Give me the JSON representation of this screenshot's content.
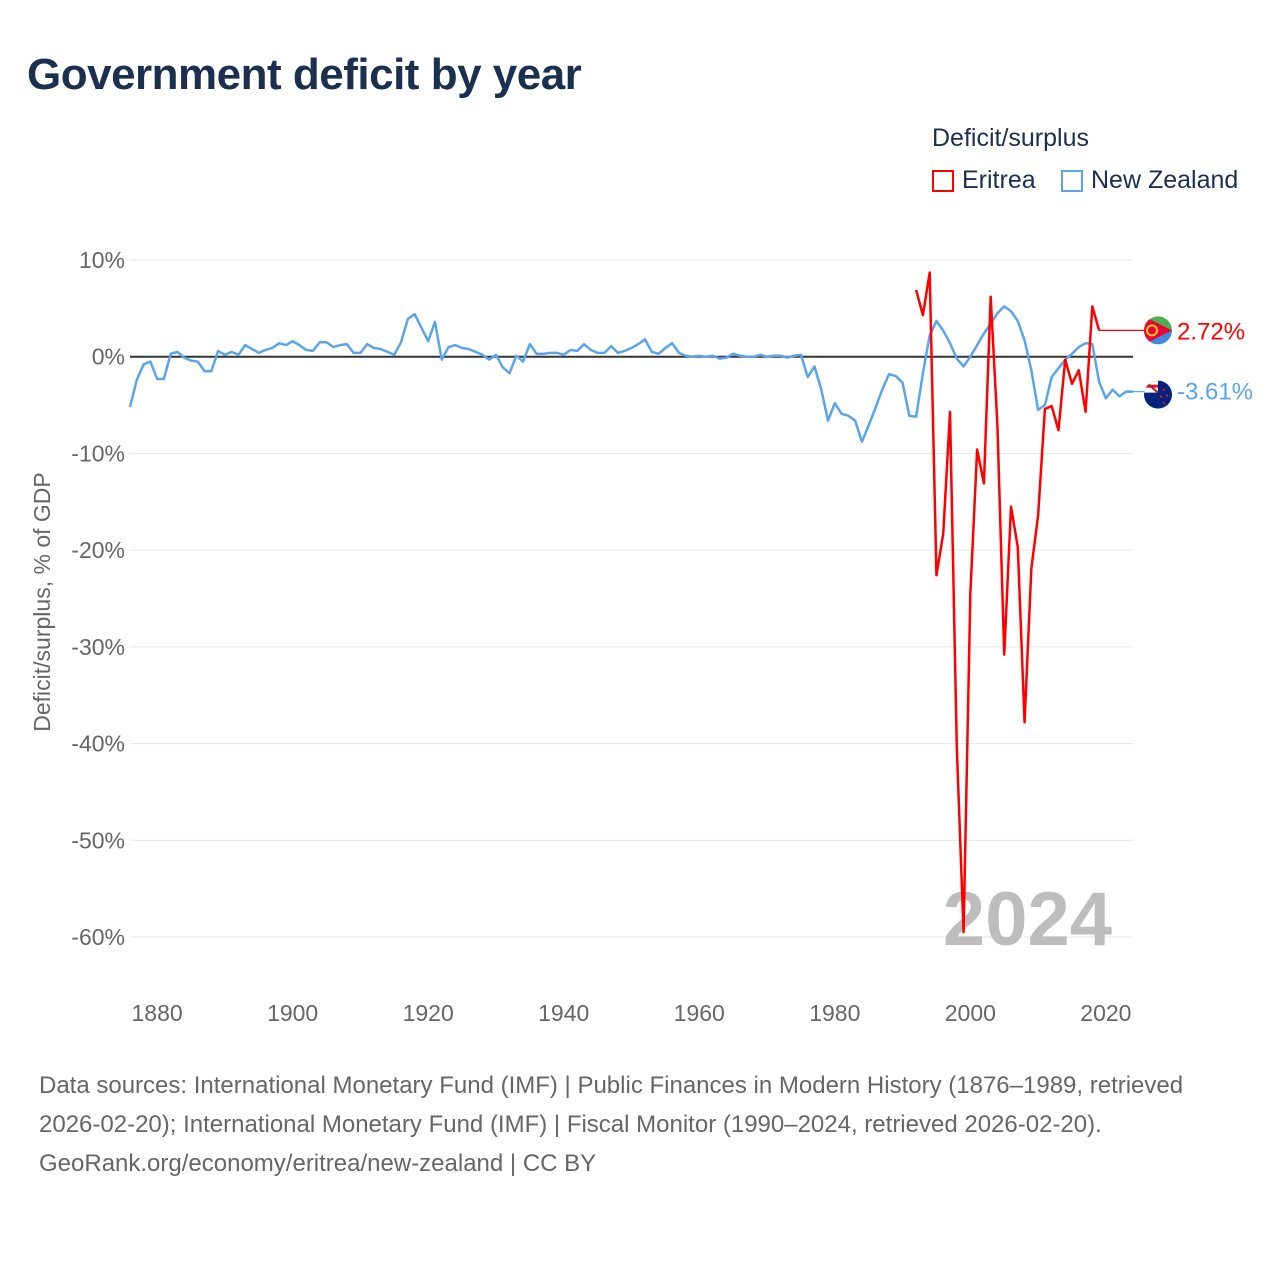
{
  "chart_data": {
    "type": "line",
    "title": "Government deficit by year",
    "ylabel": "Deficit/surplus, % of GDP",
    "xlabel": "",
    "xlim": [
      1876,
      2024
    ],
    "ylim": [
      -60,
      10
    ],
    "grid": true,
    "legend": {
      "title": "Deficit/surplus",
      "placement": "top-right"
    },
    "x_ticks": [
      1880,
      1900,
      1920,
      1940,
      1960,
      1980,
      2000,
      2020
    ],
    "x_tick_labels": [
      "1880",
      "1900",
      "1920",
      "1940",
      "1960",
      "1980",
      "2000",
      "2020"
    ],
    "y_ticks": [
      10,
      0,
      -10,
      -20,
      -30,
      -40,
      -50,
      -60
    ],
    "y_tick_labels": [
      "10%",
      "0%",
      "-10%",
      "-20%",
      "-30%",
      "-40%",
      "-50%",
      "-60%"
    ],
    "year_watermark": "2024",
    "series": [
      {
        "name": "Eritrea",
        "color": "#ff0000",
        "end_label": "2.72%",
        "flag": "eritrea-flag",
        "x": [
          1992,
          1993,
          1994,
          1995,
          1996,
          1997,
          1998,
          1999,
          2000,
          2001,
          2002,
          2003,
          2004,
          2005,
          2006,
          2007,
          2008,
          2009,
          2010,
          2011,
          2012,
          2013,
          2014,
          2015,
          2016,
          2017,
          2018,
          2019
        ],
        "values": [
          6.9,
          4.3,
          8.7,
          -22.6,
          -18.3,
          -5.7,
          -40.4,
          -59.5,
          -24.5,
          -9.6,
          -13.1,
          6.2,
          -7.2,
          -30.8,
          -15.5,
          -19.7,
          -37.8,
          -21.9,
          -16.4,
          -5.4,
          -5.1,
          -7.6,
          -0.3,
          -2.8,
          -1.4,
          -5.7,
          5.2,
          2.72
        ]
      },
      {
        "name": "New Zealand",
        "color": "#5aa5ea",
        "end_label": "-3.61%",
        "flag": "new-zealand-flag",
        "x": [
          1876,
          1877,
          1878,
          1879,
          1880,
          1881,
          1882,
          1883,
          1884,
          1885,
          1886,
          1887,
          1888,
          1889,
          1890,
          1891,
          1892,
          1893,
          1894,
          1895,
          1896,
          1897,
          1898,
          1899,
          1900,
          1901,
          1902,
          1903,
          1904,
          1905,
          1906,
          1907,
          1908,
          1909,
          1910,
          1911,
          1912,
          1913,
          1914,
          1915,
          1916,
          1917,
          1918,
          1919,
          1920,
          1921,
          1922,
          1923,
          1924,
          1925,
          1926,
          1927,
          1928,
          1929,
          1930,
          1931,
          1932,
          1933,
          1934,
          1935,
          1936,
          1937,
          1938,
          1939,
          1940,
          1941,
          1942,
          1943,
          1944,
          1945,
          1946,
          1947,
          1948,
          1949,
          1950,
          1951,
          1952,
          1953,
          1954,
          1955,
          1956,
          1957,
          1958,
          1959,
          1960,
          1961,
          1962,
          1963,
          1964,
          1965,
          1966,
          1967,
          1968,
          1969,
          1970,
          1971,
          1972,
          1973,
          1974,
          1975,
          1976,
          1977,
          1978,
          1979,
          1980,
          1981,
          1982,
          1983,
          1984,
          1985,
          1986,
          1987,
          1988,
          1989,
          1990,
          1991,
          1992,
          1993,
          1994,
          1995,
          1996,
          1997,
          1998,
          1999,
          2000,
          2001,
          2002,
          2003,
          2004,
          2005,
          2006,
          2007,
          2008,
          2009,
          2010,
          2011,
          2012,
          2013,
          2014,
          2015,
          2016,
          2017,
          2018,
          2019,
          2020,
          2021,
          2022,
          2023,
          2024
        ],
        "values": [
          -5.2,
          -2.4,
          -0.8,
          -0.5,
          -2.3,
          -2.3,
          0.3,
          0.5,
          -0.1,
          -0.4,
          -0.5,
          -1.5,
          -1.5,
          0.6,
          0.2,
          0.5,
          0.2,
          1.2,
          0.8,
          0.4,
          0.7,
          0.9,
          1.4,
          1.2,
          1.6,
          1.2,
          0.7,
          0.6,
          1.5,
          1.5,
          1.0,
          1.2,
          1.3,
          0.4,
          0.4,
          1.3,
          0.9,
          0.8,
          0.5,
          0.2,
          1.5,
          3.9,
          4.4,
          3.0,
          1.6,
          3.6,
          -0.3,
          1.0,
          1.2,
          0.9,
          0.8,
          0.5,
          0.2,
          -0.3,
          0.2,
          -1.1,
          -1.7,
          0.1,
          -0.5,
          1.3,
          0.3,
          0.3,
          0.4,
          0.4,
          0.2,
          0.7,
          0.6,
          1.3,
          0.7,
          0.4,
          0.4,
          1.1,
          0.4,
          0.6,
          0.9,
          1.3,
          1.8,
          0.5,
          0.3,
          0.9,
          1.4,
          0.4,
          0.1,
          0.0,
          0.1,
          0.0,
          0.1,
          -0.2,
          -0.1,
          0.3,
          0.1,
          0.0,
          0.0,
          0.2,
          0.0,
          0.1,
          0.1,
          -0.1,
          0.1,
          0.2,
          -2.1,
          -1.0,
          -3.4,
          -6.6,
          -4.8,
          -5.9,
          -6.1,
          -6.6,
          -8.8,
          -7.1,
          -5.3,
          -3.4,
          -1.8,
          -2.0,
          -2.7,
          -6.1,
          -6.2,
          -1.7,
          2.2,
          3.7,
          2.7,
          1.4,
          -0.2,
          -1.0,
          0.0,
          1.2,
          2.4,
          3.4,
          4.5,
          5.2,
          4.7,
          3.7,
          1.7,
          -1.4,
          -5.5,
          -5.0,
          -2.1,
          -1.2,
          -0.3,
          0.3,
          1.0,
          1.4,
          1.3,
          -2.6,
          -4.3,
          -3.4,
          -4.1,
          -3.6,
          -3.61
        ]
      }
    ]
  },
  "footer": {
    "sources": "Data sources: International Monetary Fund (IMF) | Public Finances in Modern History (1876–1989, retrieved 2026-02-20); International Monetary Fund (IMF) | Fiscal Monitor (1990–2024, retrieved 2026-02-20).",
    "credit": "GeoRank.org/economy/eritrea/new-zealand | CC BY"
  }
}
